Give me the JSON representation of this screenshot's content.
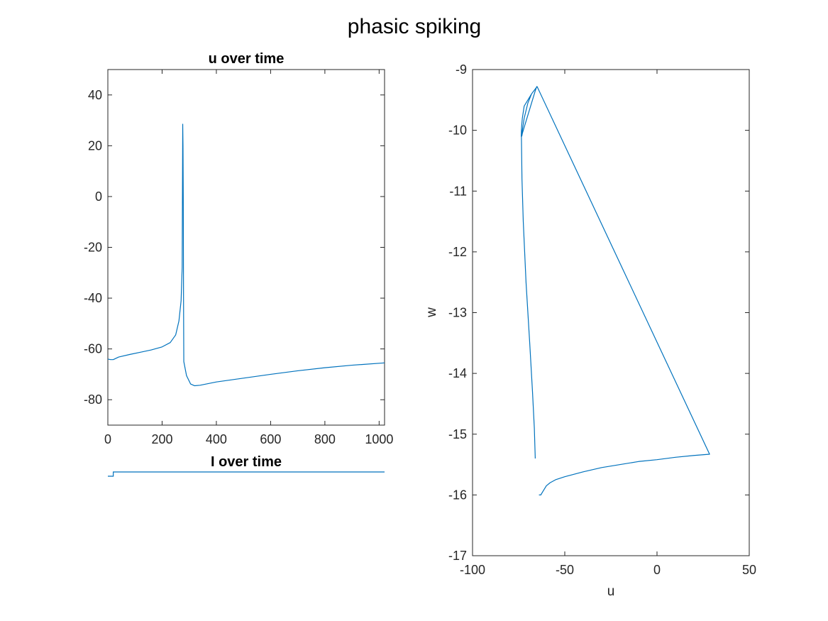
{
  "figure": {
    "title": "phasic spiking"
  },
  "colors": {
    "line": "#0072BD",
    "axis": "#262626",
    "background": "#ffffff"
  },
  "chart_data": [
    {
      "id": "u_time",
      "type": "line",
      "title": "u over time",
      "xlabel": "",
      "ylabel": "",
      "xlim": [
        0,
        1020
      ],
      "ylim": [
        -90,
        50
      ],
      "xticks": [
        0,
        200,
        400,
        600,
        800,
        1000
      ],
      "yticks": [
        -80,
        -60,
        -40,
        -20,
        0,
        20,
        40
      ],
      "xtick_labels": [
        "0",
        "200",
        "400",
        "600",
        "800",
        "1000"
      ],
      "ytick_labels": [
        "-80",
        "-60",
        "-40",
        "-20",
        "0",
        "20",
        "40"
      ],
      "grid": false,
      "series": [
        {
          "x": [
            0,
            10,
            20,
            40,
            80,
            120,
            160,
            200,
            230,
            250,
            262,
            270,
            274,
            276,
            277,
            278,
            279,
            280,
            290,
            305,
            320,
            340,
            400,
            500,
            600,
            700,
            800,
            900,
            1020
          ],
          "y": [
            -64,
            -64.2,
            -64.2,
            -63.2,
            -62.2,
            -61.3,
            -60.4,
            -59.2,
            -57.5,
            -54.5,
            -49,
            -41,
            -28,
            28.5,
            20,
            0,
            -40,
            -65,
            -70.5,
            -73.8,
            -74.5,
            -74.3,
            -73,
            -71.5,
            -70,
            -68.6,
            -67.4,
            -66.4,
            -65.5
          ]
        }
      ]
    },
    {
      "id": "I_time",
      "type": "line",
      "title": "I over time",
      "xlabel": "",
      "ylabel": "",
      "xlim": [
        0,
        1020
      ],
      "ylim": [
        0,
        1
      ],
      "axes_visible": false,
      "series": [
        {
          "x": [
            0,
            20,
            20,
            1020
          ],
          "y": [
            0,
            0,
            1,
            1
          ]
        }
      ]
    },
    {
      "id": "phase",
      "type": "line",
      "title": "",
      "xlabel": "u",
      "ylabel": "w",
      "xlim": [
        -100,
        50
      ],
      "ylim": [
        -17,
        -9
      ],
      "xticks": [
        -100,
        -50,
        0,
        50
      ],
      "yticks": [
        -17,
        -16,
        -15,
        -14,
        -13,
        -12,
        -11,
        -10,
        -9
      ],
      "xtick_labels": [
        "-100",
        "-50",
        "0",
        "50"
      ],
      "ytick_labels": [
        "-17",
        "-16",
        "-15",
        "-14",
        "-13",
        "-12",
        "-11",
        "-10",
        "-9"
      ],
      "grid": false,
      "series": [
        {
          "x": [
            -64,
            -63,
            -62,
            -61,
            -60,
            -58,
            -55,
            -50,
            -40,
            -30,
            -20,
            -10,
            0,
            10,
            20,
            28.5,
            -65,
            -68,
            -72,
            -73,
            -73.3,
            -73.5,
            -73.6,
            -73.4,
            -73,
            -72,
            -70,
            -68,
            -65,
            -65.2,
            -66,
            -67,
            -68,
            -69,
            -70,
            -71,
            -72,
            -73,
            -73.3
          ],
          "y": [
            -16.0,
            -16.0,
            -15.95,
            -15.9,
            -15.85,
            -15.8,
            -15.75,
            -15.7,
            -15.62,
            -15.55,
            -15.5,
            -15.45,
            -15.42,
            -15.38,
            -15.35,
            -15.33,
            -9.28,
            -9.4,
            -9.6,
            -9.8,
            -9.9,
            -10.0,
            -10.1,
            -10.05,
            -10.0,
            -9.8,
            -9.55,
            -9.4,
            -9.28,
            -9.28,
            -9.35,
            -9.45,
            -9.55,
            -9.65,
            -9.75,
            -9.85,
            -9.95,
            -10.05,
            -10.1
          ]
        },
        {
          "x": [
            -73.5,
            -73.2,
            -72.5,
            -71,
            -69,
            -67.5,
            -66.5,
            -66
          ],
          "y": [
            -10.1,
            -10.8,
            -11.5,
            -12.5,
            -13.5,
            -14.3,
            -14.9,
            -15.4
          ]
        }
      ]
    }
  ]
}
